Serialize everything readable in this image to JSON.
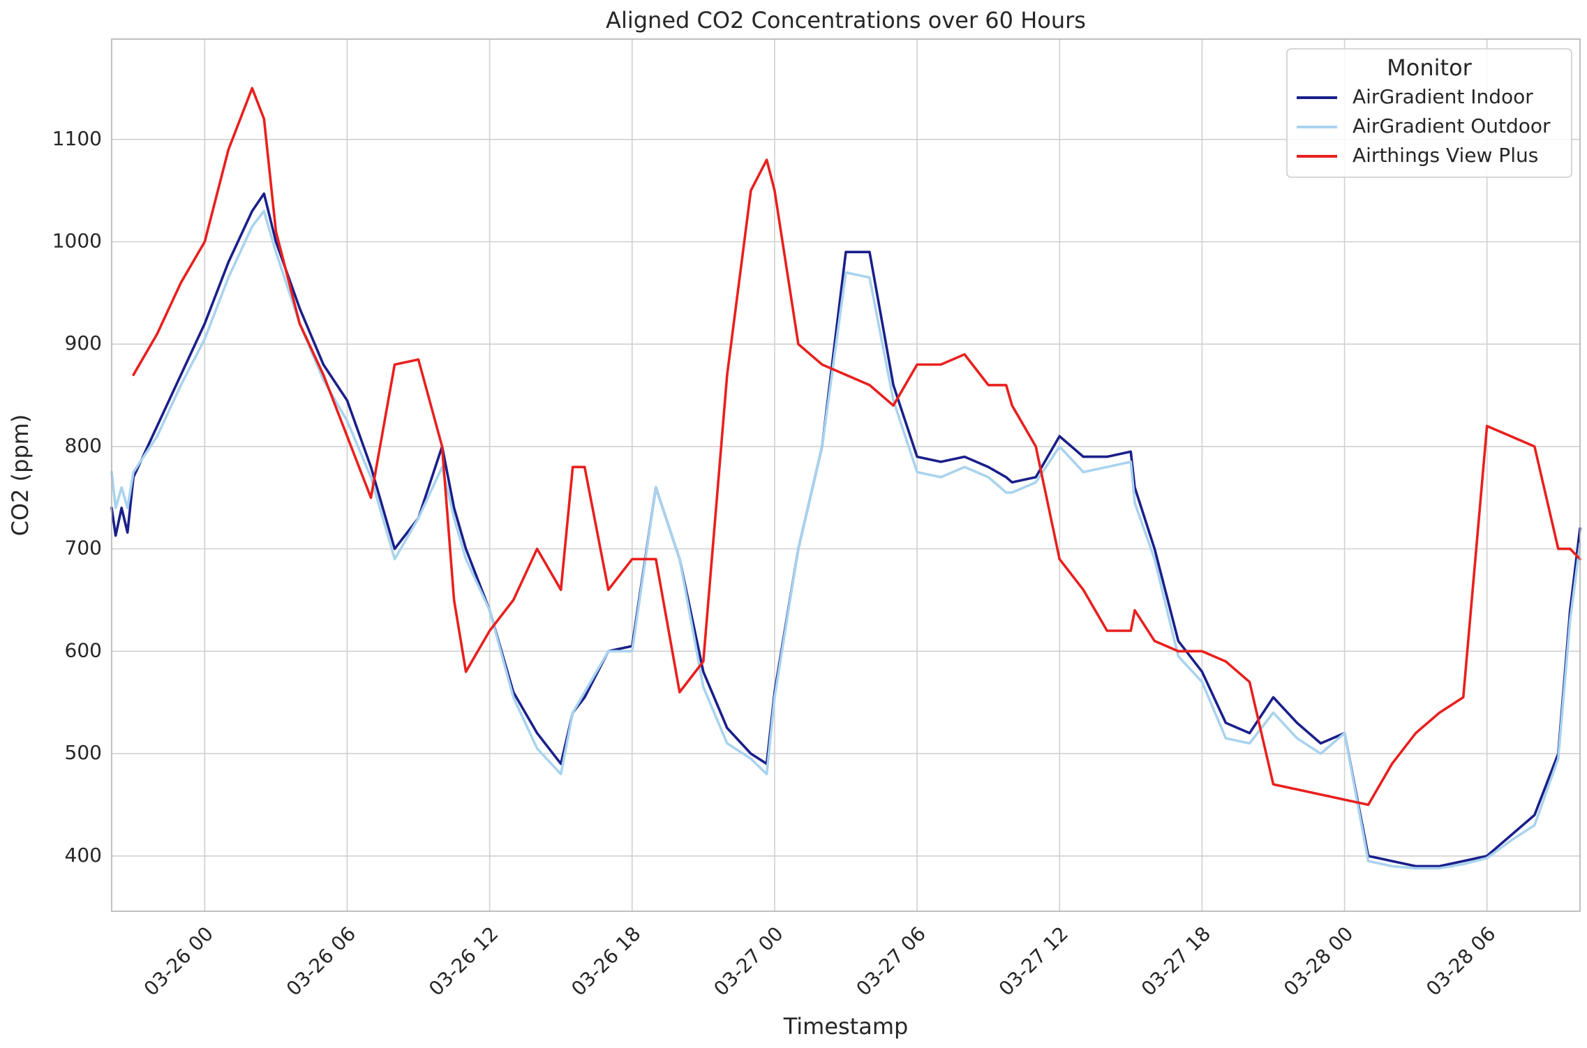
{
  "chart_data": {
    "type": "line",
    "title": "Aligned CO2 Concentrations over 60 Hours",
    "xlabel": "Timestamp",
    "ylabel": "CO2 (ppm)",
    "grid": true,
    "legend": {
      "title": "Monitor",
      "placement": "top-right"
    },
    "xlim": [
      "2025-03-25 20:05",
      "2025-03-28 09:55"
    ],
    "ylim": [
      346,
      1198
    ],
    "x_ticks": [
      {
        "value": "2025-03-26 00:00",
        "label": "03-26 00"
      },
      {
        "value": "2025-03-26 06:00",
        "label": "03-26 06"
      },
      {
        "value": "2025-03-26 12:00",
        "label": "03-26 12"
      },
      {
        "value": "2025-03-26 18:00",
        "label": "03-26 18"
      },
      {
        "value": "2025-03-27 00:00",
        "label": "03-27 00"
      },
      {
        "value": "2025-03-27 06:00",
        "label": "03-27 06"
      },
      {
        "value": "2025-03-27 12:00",
        "label": "03-27 12"
      },
      {
        "value": "2025-03-27 18:00",
        "label": "03-27 18"
      },
      {
        "value": "2025-03-28 00:00",
        "label": "03-28 00"
      },
      {
        "value": "2025-03-28 06:00",
        "label": "03-28 06"
      }
    ],
    "y_ticks": [
      {
        "value": 400,
        "label": "400"
      },
      {
        "value": 500,
        "label": "500"
      },
      {
        "value": 600,
        "label": "600"
      },
      {
        "value": 700,
        "label": "700"
      },
      {
        "value": 800,
        "label": "800"
      },
      {
        "value": 900,
        "label": "900"
      },
      {
        "value": 1000,
        "label": "1000"
      },
      {
        "value": 1100,
        "label": "1100"
      }
    ],
    "series": [
      {
        "name": "AirGradient Indoor",
        "color": "#1a1f8a",
        "x": [
          "2025-03-25 20:05",
          "2025-03-25 20:15",
          "2025-03-25 20:30",
          "2025-03-25 20:45",
          "2025-03-25 21:00",
          "2025-03-25 22:00",
          "2025-03-25 23:00",
          "2025-03-26 00:00",
          "2025-03-26 01:00",
          "2025-03-26 02:00",
          "2025-03-26 02:30",
          "2025-03-26 03:00",
          "2025-03-26 04:00",
          "2025-03-26 05:00",
          "2025-03-26 06:00",
          "2025-03-26 07:00",
          "2025-03-26 08:00",
          "2025-03-26 09:00",
          "2025-03-26 10:00",
          "2025-03-26 10:30",
          "2025-03-26 11:00",
          "2025-03-26 12:00",
          "2025-03-26 13:00",
          "2025-03-26 14:00",
          "2025-03-26 15:00",
          "2025-03-26 15:30",
          "2025-03-26 16:00",
          "2025-03-26 17:00",
          "2025-03-26 18:00",
          "2025-03-26 19:00",
          "2025-03-26 20:00",
          "2025-03-26 21:00",
          "2025-03-26 22:00",
          "2025-03-26 23:00",
          "2025-03-26 23:40",
          "2025-03-27 00:00",
          "2025-03-27 01:00",
          "2025-03-27 02:00",
          "2025-03-27 03:00",
          "2025-03-27 04:00",
          "2025-03-27 05:00",
          "2025-03-27 06:00",
          "2025-03-27 07:00",
          "2025-03-27 08:00",
          "2025-03-27 09:00",
          "2025-03-27 09:45",
          "2025-03-27 10:00",
          "2025-03-27 11:00",
          "2025-03-27 12:00",
          "2025-03-27 13:00",
          "2025-03-27 14:00",
          "2025-03-27 15:00",
          "2025-03-27 15:10",
          "2025-03-27 16:00",
          "2025-03-27 17:00",
          "2025-03-27 18:00",
          "2025-03-27 19:00",
          "2025-03-27 20:00",
          "2025-03-27 21:00",
          "2025-03-27 22:00",
          "2025-03-27 23:00",
          "2025-03-28 00:00",
          "2025-03-28 01:00",
          "2025-03-28 02:00",
          "2025-03-28 03:00",
          "2025-03-28 04:00",
          "2025-03-28 05:00",
          "2025-03-28 06:00",
          "2025-03-28 07:00",
          "2025-03-28 08:00",
          "2025-03-28 09:00",
          "2025-03-28 09:30",
          "2025-03-28 09:55"
        ],
        "values": [
          740,
          713,
          740,
          716,
          770,
          820,
          870,
          920,
          980,
          1030,
          1047,
          1000,
          935,
          880,
          845,
          780,
          700,
          730,
          800,
          740,
          700,
          640,
          560,
          520,
          490,
          540,
          555,
          600,
          605,
          760,
          690,
          580,
          525,
          500,
          490,
          560,
          700,
          800,
          990,
          990,
          860,
          790,
          785,
          790,
          780,
          770,
          765,
          770,
          810,
          790,
          790,
          795,
          760,
          700,
          610,
          580,
          530,
          520,
          555,
          530,
          510,
          520,
          400,
          395,
          390,
          390,
          395,
          400,
          420,
          440,
          500,
          640,
          720
        ]
      },
      {
        "name": "AirGradient Outdoor",
        "color": "#a9d3ee",
        "x": [
          "2025-03-25 20:05",
          "2025-03-25 20:15",
          "2025-03-25 20:30",
          "2025-03-25 20:45",
          "2025-03-25 21:00",
          "2025-03-25 22:00",
          "2025-03-25 23:00",
          "2025-03-26 00:00",
          "2025-03-26 01:00",
          "2025-03-26 02:00",
          "2025-03-26 02:30",
          "2025-03-26 03:00",
          "2025-03-26 04:00",
          "2025-03-26 05:00",
          "2025-03-26 06:00",
          "2025-03-26 07:00",
          "2025-03-26 08:00",
          "2025-03-26 09:00",
          "2025-03-26 10:00",
          "2025-03-26 10:30",
          "2025-03-26 11:00",
          "2025-03-26 12:00",
          "2025-03-26 13:00",
          "2025-03-26 14:00",
          "2025-03-26 15:00",
          "2025-03-26 15:30",
          "2025-03-26 16:00",
          "2025-03-26 17:00",
          "2025-03-26 18:00",
          "2025-03-26 19:00",
          "2025-03-26 20:00",
          "2025-03-26 21:00",
          "2025-03-26 22:00",
          "2025-03-26 23:00",
          "2025-03-26 23:40",
          "2025-03-27 00:00",
          "2025-03-27 01:00",
          "2025-03-27 02:00",
          "2025-03-27 03:00",
          "2025-03-27 04:00",
          "2025-03-27 05:00",
          "2025-03-27 06:00",
          "2025-03-27 07:00",
          "2025-03-27 08:00",
          "2025-03-27 09:00",
          "2025-03-27 09:45",
          "2025-03-27 10:00",
          "2025-03-27 11:00",
          "2025-03-27 12:00",
          "2025-03-27 13:00",
          "2025-03-27 14:00",
          "2025-03-27 15:00",
          "2025-03-27 15:10",
          "2025-03-27 16:00",
          "2025-03-27 17:00",
          "2025-03-27 18:00",
          "2025-03-27 19:00",
          "2025-03-27 20:00",
          "2025-03-27 21:00",
          "2025-03-27 22:00",
          "2025-03-27 23:00",
          "2025-03-28 00:00",
          "2025-03-28 01:00",
          "2025-03-28 02:00",
          "2025-03-28 03:00",
          "2025-03-28 04:00",
          "2025-03-28 05:00",
          "2025-03-28 06:00",
          "2025-03-28 07:00",
          "2025-03-28 08:00",
          "2025-03-28 09:00",
          "2025-03-28 09:30",
          "2025-03-28 09:55"
        ],
        "values": [
          775,
          740,
          760,
          740,
          775,
          810,
          860,
          905,
          965,
          1015,
          1030,
          990,
          920,
          865,
          825,
          770,
          690,
          730,
          780,
          730,
          690,
          640,
          555,
          505,
          480,
          540,
          560,
          600,
          600,
          760,
          690,
          565,
          510,
          495,
          480,
          555,
          700,
          800,
          970,
          965,
          845,
          775,
          770,
          780,
          770,
          755,
          755,
          765,
          800,
          775,
          780,
          785,
          745,
          690,
          595,
          570,
          515,
          510,
          540,
          515,
          500,
          520,
          395,
          390,
          388,
          388,
          392,
          398,
          415,
          430,
          495,
          630,
          705
        ]
      },
      {
        "name": "Airthings View Plus",
        "color": "#e8201e",
        "x": [
          "2025-03-25 20:05",
          "2025-03-25 20:15",
          "2025-03-25 20:30",
          "2025-03-25 20:45",
          "2025-03-25 21:00",
          "2025-03-25 22:00",
          "2025-03-25 23:00",
          "2025-03-26 00:00",
          "2025-03-26 01:00",
          "2025-03-26 02:00",
          "2025-03-26 02:30",
          "2025-03-26 03:00",
          "2025-03-26 04:00",
          "2025-03-26 05:00",
          "2025-03-26 06:00",
          "2025-03-26 07:00",
          "2025-03-26 08:00",
          "2025-03-26 09:00",
          "2025-03-26 10:00",
          "2025-03-26 10:30",
          "2025-03-26 11:00",
          "2025-03-26 12:00",
          "2025-03-26 13:00",
          "2025-03-26 14:00",
          "2025-03-26 15:00",
          "2025-03-26 15:30",
          "2025-03-26 16:00",
          "2025-03-26 17:00",
          "2025-03-26 18:00",
          "2025-03-26 19:00",
          "2025-03-26 20:00",
          "2025-03-26 21:00",
          "2025-03-26 22:00",
          "2025-03-26 23:00",
          "2025-03-26 23:40",
          "2025-03-27 00:00",
          "2025-03-27 01:00",
          "2025-03-27 02:00",
          "2025-03-27 03:00",
          "2025-03-27 04:00",
          "2025-03-27 05:00",
          "2025-03-27 06:00",
          "2025-03-27 07:00",
          "2025-03-27 08:00",
          "2025-03-27 09:00",
          "2025-03-27 09:45",
          "2025-03-27 10:00",
          "2025-03-27 11:00",
          "2025-03-27 12:00",
          "2025-03-27 13:00",
          "2025-03-27 14:00",
          "2025-03-27 15:00",
          "2025-03-27 15:10",
          "2025-03-27 16:00",
          "2025-03-27 17:00",
          "2025-03-27 18:00",
          "2025-03-27 19:00",
          "2025-03-27 20:00",
          "2025-03-27 21:00",
          "2025-03-27 22:00",
          "2025-03-27 23:00",
          "2025-03-28 00:00",
          "2025-03-28 01:00",
          "2025-03-28 02:00",
          "2025-03-28 03:00",
          "2025-03-28 04:00",
          "2025-03-28 05:00",
          "2025-03-28 06:00",
          "2025-03-28 07:00",
          "2025-03-28 08:00",
          "2025-03-28 09:00",
          "2025-03-28 09:30",
          "2025-03-28 09:55"
        ],
        "values": [
          null,
          null,
          null,
          null,
          870,
          910,
          960,
          1000,
          1090,
          1150,
          1120,
          1010,
          920,
          870,
          810,
          750,
          880,
          885,
          800,
          650,
          580,
          620,
          650,
          700,
          660,
          780,
          780,
          660,
          690,
          690,
          560,
          590,
          870,
          1050,
          1080,
          1050,
          900,
          880,
          870,
          860,
          840,
          880,
          880,
          890,
          860,
          860,
          840,
          800,
          690,
          660,
          620,
          620,
          640,
          610,
          600,
          600,
          590,
          570,
          470,
          465,
          460,
          455,
          450,
          490,
          520,
          540,
          555,
          820,
          810,
          800,
          700,
          700,
          690
        ]
      }
    ]
  }
}
